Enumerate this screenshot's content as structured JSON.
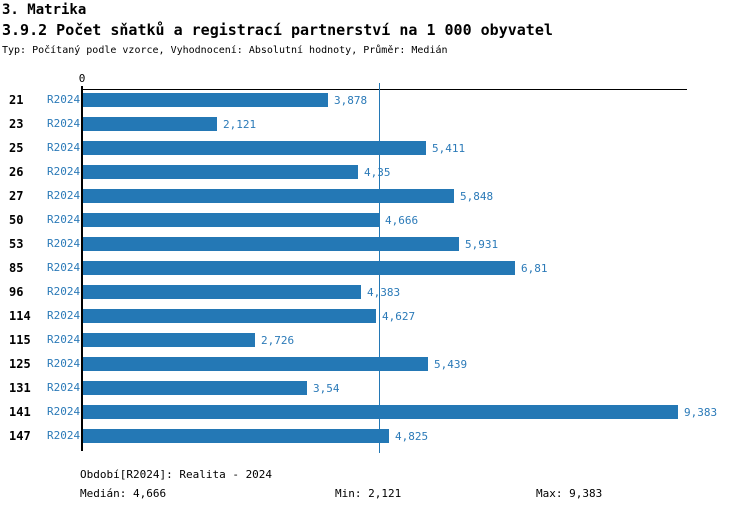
{
  "header": {
    "section": "3. Matrika",
    "title": "3.9.2 Počet sňatků a registrací partnerství na 1 000 obyvatel",
    "subtitle": "Typ: Počítaný podle vzorce, Vyhodnocení: Absolutní hodnoty, Průměr: Medián"
  },
  "chart_data": {
    "type": "bar",
    "orientation": "horizontal",
    "title": "3.9.2 Počet sňatků a registrací partnerství na 1 000 obyvatel",
    "categories": [
      "21",
      "23",
      "25",
      "26",
      "27",
      "50",
      "53",
      "85",
      "96",
      "114",
      "115",
      "125",
      "131",
      "141",
      "147"
    ],
    "series_label": "R2024",
    "values": [
      3.878,
      2.121,
      5.411,
      4.35,
      5.848,
      4.666,
      5.931,
      6.81,
      4.383,
      4.627,
      2.726,
      5.439,
      3.54,
      9.383,
      4.825
    ],
    "value_labels": [
      "3,878",
      "2,121",
      "5,411",
      "4,35",
      "5,848",
      "4,666",
      "5,931",
      "6,81",
      "4,383",
      "4,627",
      "2,726",
      "5,439",
      "3,54",
      "9,383",
      "4,825"
    ],
    "zero_tick_label": "0",
    "median_value": 4.666,
    "xlim": [
      0,
      9.52
    ],
    "grid": false,
    "legend": "none"
  },
  "colors": {
    "bar": "#2478b5",
    "blue_text": "#2b7ab8",
    "median_line": "#2478b5",
    "axis": "#000000"
  },
  "footer": {
    "period": "Období[R2024]: Realita - 2024",
    "median": "Medián: 4,666",
    "min": "Min: 2,121",
    "max": "Max: 9,383"
  }
}
